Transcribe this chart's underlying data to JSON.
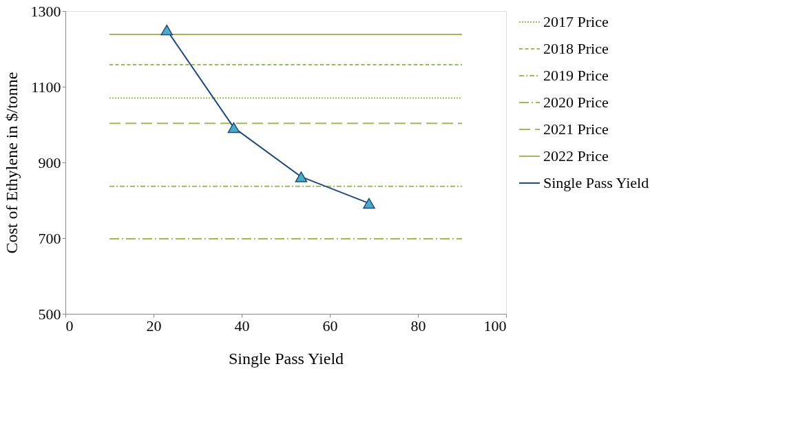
{
  "chart_data": {
    "type": "line",
    "xlabel": "Single Pass Yield",
    "ylabel": "Cost of Ethylene in $/tonne",
    "xlim": [
      0,
      100
    ],
    "xticks": [
      0,
      20,
      40,
      60,
      80,
      100
    ],
    "ylim": [
      500,
      1300
    ],
    "yticks": [
      500,
      700,
      900,
      1100,
      1300
    ],
    "grid": false,
    "legend": "right",
    "series": [
      {
        "name": "2017 Price",
        "color": "#9bbb59",
        "line_style": "dotted",
        "x": [
          10,
          90
        ],
        "values": [
          1070,
          1070
        ]
      },
      {
        "name": "2018 Price",
        "color": "#9bbb59",
        "line_style": "dashed",
        "x": [
          10,
          90
        ],
        "values": [
          1158,
          1158
        ]
      },
      {
        "name": "2019 Price",
        "color": "#9bbb59",
        "line_style": "dashdot",
        "x": [
          10,
          90
        ],
        "values": [
          837,
          837
        ]
      },
      {
        "name": "2020 Price",
        "color": "#9bbb59",
        "line_style": "longdashdot",
        "x": [
          10,
          90
        ],
        "values": [
          698,
          698
        ]
      },
      {
        "name": "2021 Price",
        "color": "#9bbb59",
        "line_style": "longdash",
        "x": [
          10,
          90
        ],
        "values": [
          1003,
          1003
        ]
      },
      {
        "name": "2022 Price",
        "color": "#9bbb59",
        "line_style": "solid",
        "x": [
          10,
          90
        ],
        "values": [
          1238,
          1238
        ]
      },
      {
        "name": "Single Pass Yield",
        "color": "#1f497d",
        "line_style": "solid",
        "marker": "triangle",
        "x": [
          23,
          38.2,
          53.5,
          68.9
        ],
        "values": [
          1250,
          992,
          862,
          792
        ]
      }
    ]
  }
}
